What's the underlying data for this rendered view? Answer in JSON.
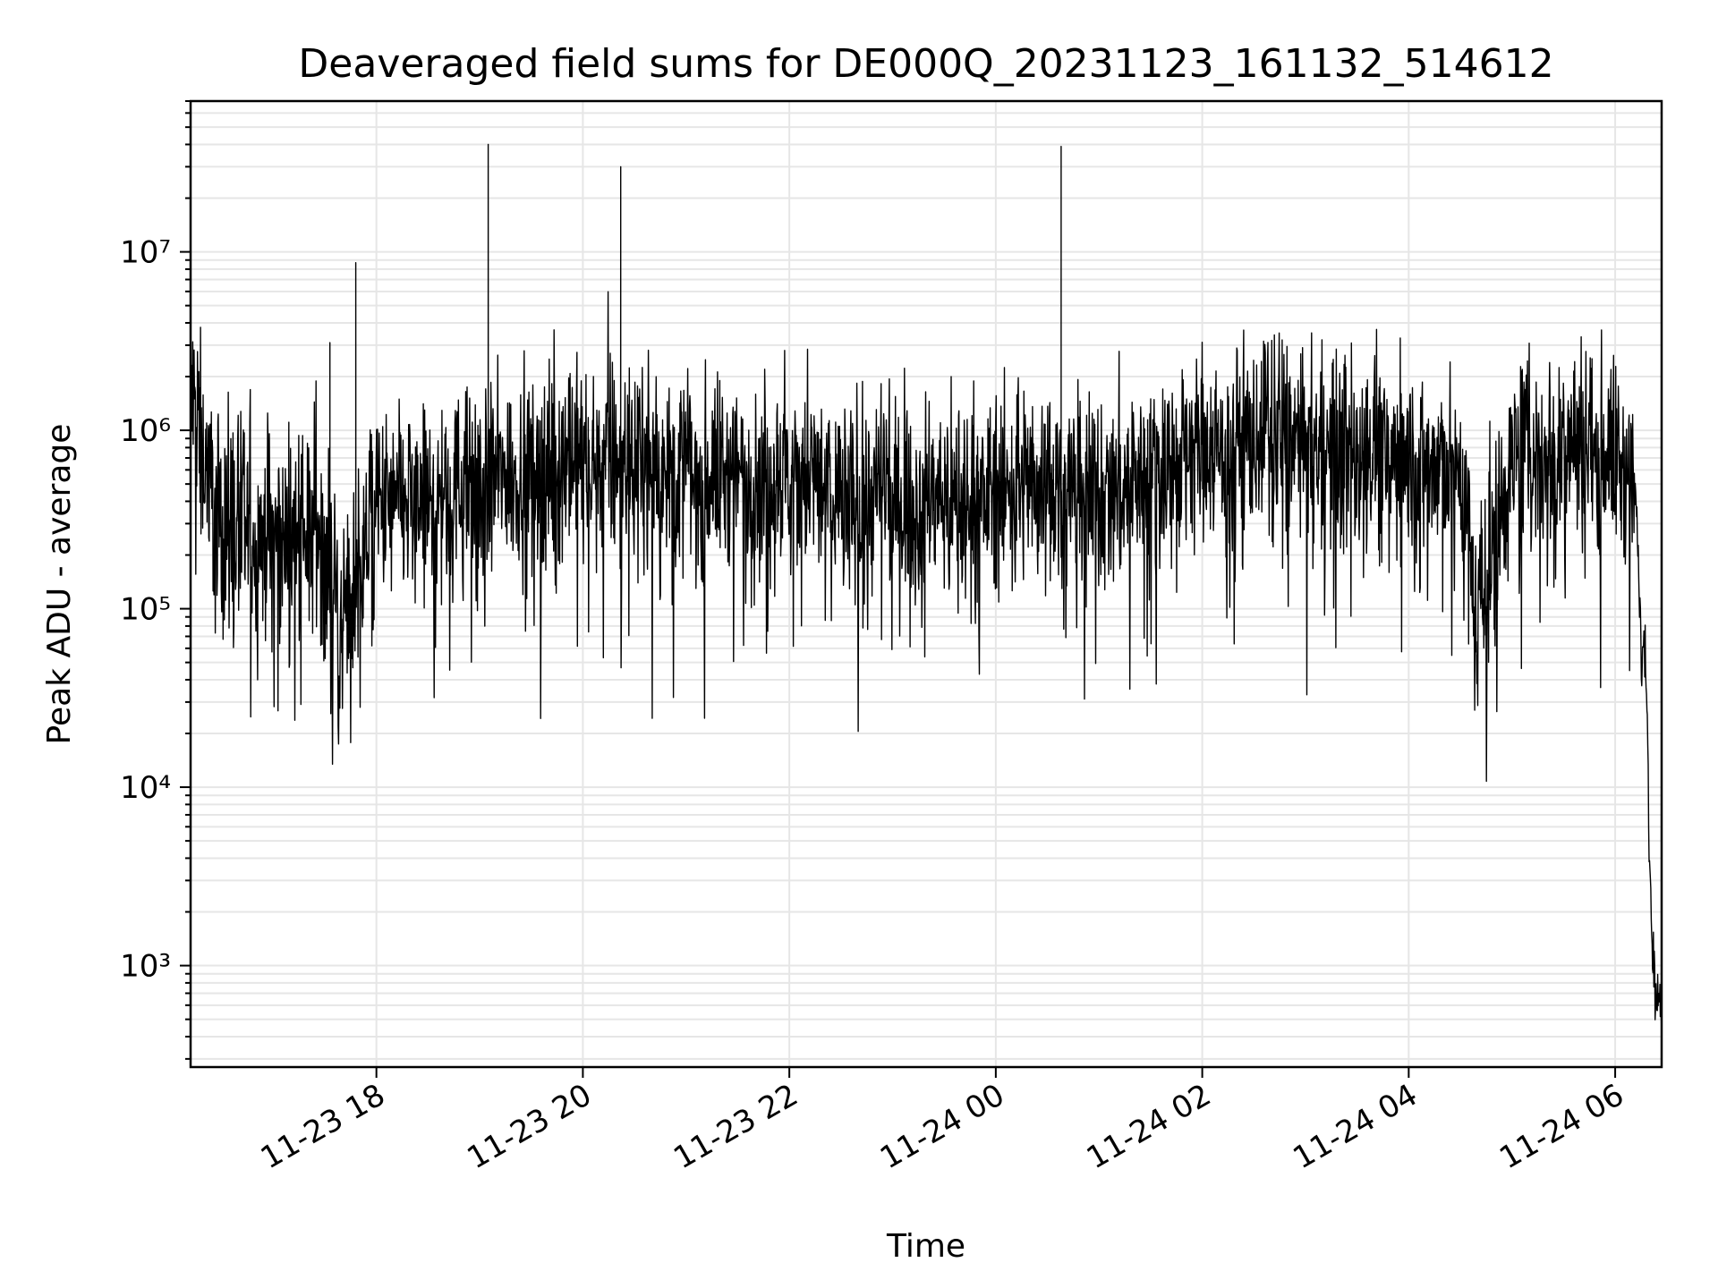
{
  "chart_data": {
    "type": "line",
    "title": "Deaveraged field sums for DE000Q_20231123_161132_514612",
    "xlabel": "Time",
    "ylabel": "Peak ADU - average",
    "y_scale": "log",
    "ylim": [
      270,
      70000000
    ],
    "xlim": [
      "2023-11-23 16:12",
      "2023-11-24 06:27"
    ],
    "x_ticks": [
      "2023-11-23 18:00",
      "2023-11-23 20:00",
      "2023-11-23 22:00",
      "2023-11-24 00:00",
      "2023-11-24 02:00",
      "2023-11-24 04:00",
      "2023-11-24 06:00"
    ],
    "x_tick_labels": [
      "11-23 18",
      "11-23 20",
      "11-23 22",
      "11-24 00",
      "11-24 02",
      "11-24 04",
      "11-24 06"
    ],
    "y_ticks": [
      1000,
      10000,
      100000,
      1000000,
      10000000
    ],
    "y_tick_labels": [
      "10³",
      "10⁴",
      "10⁵",
      "10⁶",
      "10⁷"
    ],
    "grid": true,
    "line_color": "#000000",
    "grid_color": "#e6e6e6",
    "series": [
      {
        "x": [
          "2023-11-23 16:12",
          "2023-11-23 16:30",
          "2023-11-23 16:50",
          "2023-11-23 17:10",
          "2023-11-23 17:25",
          "2023-11-23 17:33",
          "2023-11-23 17:40",
          "2023-11-23 17:48",
          "2023-11-23 18:00",
          "2023-11-23 18:30",
          "2023-11-23 19:00",
          "2023-11-23 19:05",
          "2023-11-23 19:30",
          "2023-11-23 20:00",
          "2023-11-23 20:22",
          "2023-11-23 20:40",
          "2023-11-23 21:00",
          "2023-11-23 21:30",
          "2023-11-23 22:00",
          "2023-11-23 22:30",
          "2023-11-23 23:00",
          "2023-11-23 23:30",
          "2023-11-24 00:00",
          "2023-11-24 00:30",
          "2023-11-24 00:38",
          "2023-11-24 01:00",
          "2023-11-24 01:30",
          "2023-11-24 01:40",
          "2023-11-24 02:00",
          "2023-11-24 02:30",
          "2023-11-24 02:45",
          "2023-11-24 03:00",
          "2023-11-24 03:30",
          "2023-11-24 04:00",
          "2023-11-24 04:30",
          "2023-11-24 04:40",
          "2023-11-24 05:00",
          "2023-11-24 05:30",
          "2023-11-24 05:50",
          "2023-11-24 06:05",
          "2023-11-24 06:12",
          "2023-11-24 06:15",
          "2023-11-24 06:18",
          "2023-11-24 06:21",
          "2023-11-24 06:24",
          "2023-11-24 06:27"
        ],
        "y": [
          1500000,
          300000,
          250000,
          250000,
          300000,
          3100000,
          100000,
          8700000,
          350000,
          400000,
          500000,
          40000000,
          600000,
          700000,
          30000000,
          650000,
          600000,
          550000,
          550000,
          450000,
          400000,
          420000,
          450000,
          500000,
          39000000,
          400000,
          600000,
          700000,
          800000,
          900000,
          1000000,
          700000,
          800000,
          650000,
          600000,
          80000,
          700000,
          900000,
          900000,
          600000,
          400000,
          60000,
          50000,
          1500,
          900,
          600
        ]
      }
    ]
  }
}
